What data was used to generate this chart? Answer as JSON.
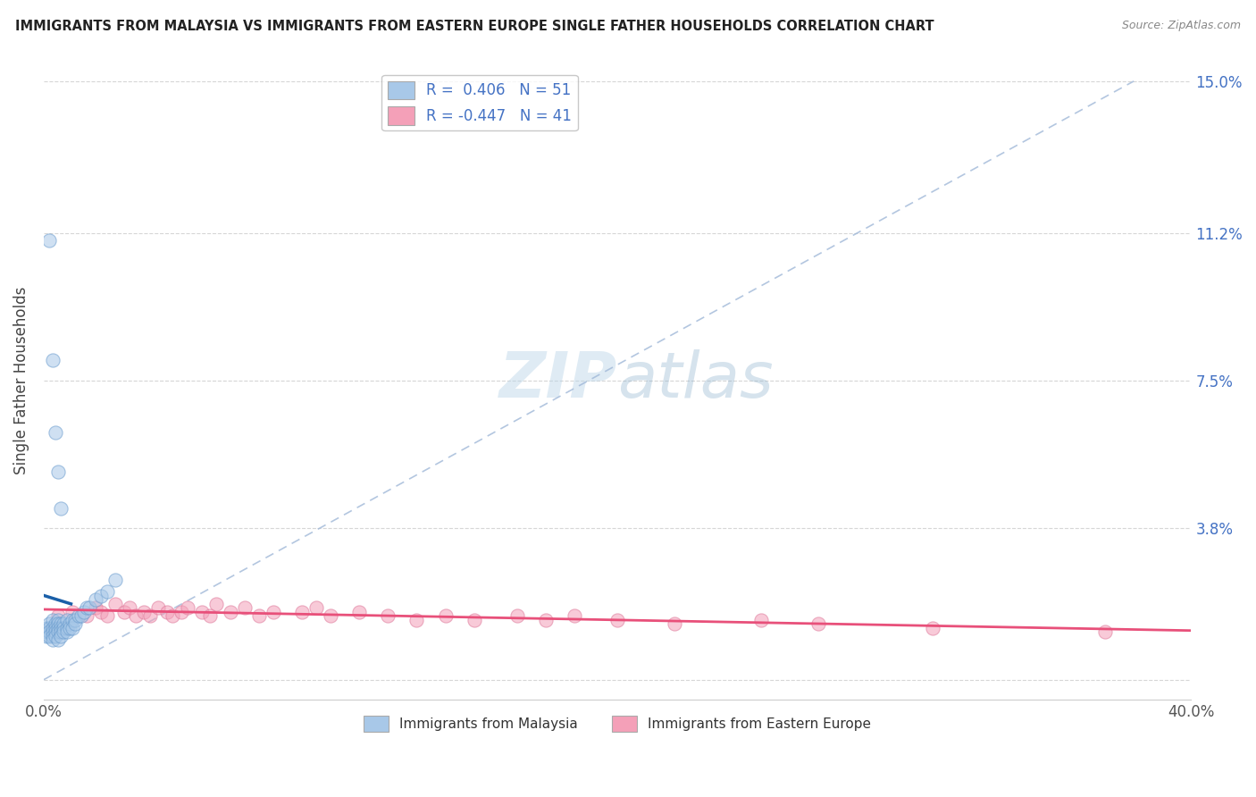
{
  "title": "IMMIGRANTS FROM MALAYSIA VS IMMIGRANTS FROM EASTERN EUROPE SINGLE FATHER HOUSEHOLDS CORRELATION CHART",
  "source": "Source: ZipAtlas.com",
  "ylabel": "Single Father Households",
  "xlim": [
    0.0,
    0.4
  ],
  "ylim": [
    -0.005,
    0.155
  ],
  "ytick_labels_right": [
    "",
    "3.8%",
    "7.5%",
    "11.2%",
    "15.0%"
  ],
  "yticks": [
    0.0,
    0.038,
    0.075,
    0.112,
    0.15
  ],
  "blue_R": "0.406",
  "blue_N": "51",
  "pink_R": "-0.447",
  "pink_N": "41",
  "blue_color": "#a8c8e8",
  "blue_edge_color": "#6699cc",
  "pink_color": "#f4a0b8",
  "pink_edge_color": "#dd7799",
  "blue_line_color": "#1a5fa8",
  "pink_line_color": "#e8507a",
  "dash_line_color": "#a0b8d8",
  "watermark_color": "#c8dff0",
  "background_color": "#ffffff",
  "grid_color": "#cccccc",
  "blue_scatter_x": [
    0.001,
    0.001,
    0.001,
    0.002,
    0.002,
    0.002,
    0.002,
    0.003,
    0.003,
    0.003,
    0.003,
    0.003,
    0.004,
    0.004,
    0.004,
    0.004,
    0.005,
    0.005,
    0.005,
    0.005,
    0.005,
    0.006,
    0.006,
    0.006,
    0.006,
    0.007,
    0.007,
    0.007,
    0.008,
    0.008,
    0.008,
    0.009,
    0.009,
    0.01,
    0.01,
    0.011,
    0.011,
    0.012,
    0.013,
    0.014,
    0.015,
    0.016,
    0.018,
    0.02,
    0.022,
    0.025,
    0.002,
    0.003,
    0.004,
    0.005,
    0.006
  ],
  "blue_scatter_y": [
    0.013,
    0.012,
    0.011,
    0.014,
    0.013,
    0.012,
    0.011,
    0.015,
    0.013,
    0.012,
    0.011,
    0.01,
    0.014,
    0.013,
    0.012,
    0.011,
    0.015,
    0.014,
    0.013,
    0.012,
    0.01,
    0.014,
    0.013,
    0.012,
    0.011,
    0.014,
    0.013,
    0.012,
    0.015,
    0.013,
    0.012,
    0.014,
    0.013,
    0.015,
    0.013,
    0.015,
    0.014,
    0.016,
    0.016,
    0.017,
    0.018,
    0.018,
    0.02,
    0.021,
    0.022,
    0.025,
    0.11,
    0.08,
    0.062,
    0.052,
    0.043
  ],
  "pink_scatter_x": [
    0.005,
    0.01,
    0.015,
    0.018,
    0.02,
    0.022,
    0.025,
    0.028,
    0.03,
    0.032,
    0.035,
    0.037,
    0.04,
    0.043,
    0.045,
    0.048,
    0.05,
    0.055,
    0.058,
    0.06,
    0.065,
    0.07,
    0.075,
    0.08,
    0.09,
    0.095,
    0.1,
    0.11,
    0.12,
    0.13,
    0.14,
    0.15,
    0.165,
    0.175,
    0.185,
    0.2,
    0.22,
    0.25,
    0.27,
    0.31,
    0.37
  ],
  "pink_scatter_y": [
    0.016,
    0.017,
    0.016,
    0.018,
    0.017,
    0.016,
    0.019,
    0.017,
    0.018,
    0.016,
    0.017,
    0.016,
    0.018,
    0.017,
    0.016,
    0.017,
    0.018,
    0.017,
    0.016,
    0.019,
    0.017,
    0.018,
    0.016,
    0.017,
    0.017,
    0.018,
    0.016,
    0.017,
    0.016,
    0.015,
    0.016,
    0.015,
    0.016,
    0.015,
    0.016,
    0.015,
    0.014,
    0.015,
    0.014,
    0.013,
    0.012
  ]
}
